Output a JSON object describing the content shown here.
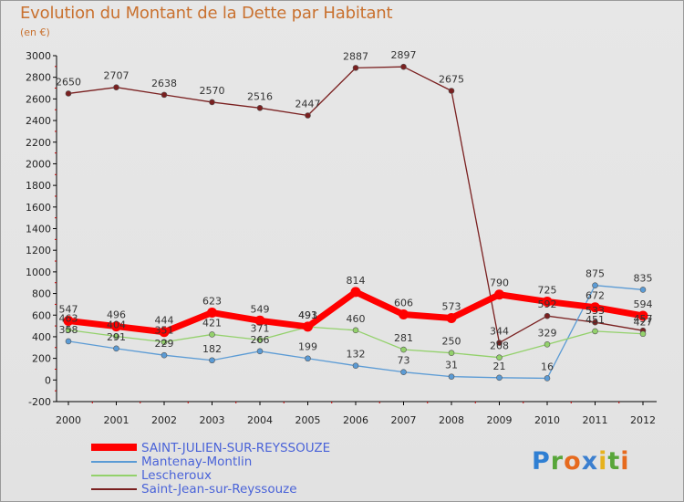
{
  "title": "Evolution du Montant de la Dette par Habitant",
  "subtitle": "(en €)",
  "logo": {
    "letters": [
      "P",
      "r",
      "o",
      "x",
      "i",
      "t",
      "i"
    ],
    "colors": [
      "#2f7fd3",
      "#58a63a",
      "#e66a1e",
      "#3b7fcf",
      "#e6b21e",
      "#58a63a",
      "#e66a1e"
    ]
  },
  "chart_data": {
    "type": "line",
    "x": [
      "2000",
      "2001",
      "2002",
      "2003",
      "2004",
      "2005",
      "2006",
      "2007",
      "2008",
      "2009",
      "2010",
      "2011",
      "2012"
    ],
    "ylim": [
      -200,
      3000
    ],
    "yticks": [
      "-200",
      "0",
      "200",
      "400",
      "600",
      "800",
      "1000",
      "1200",
      "1400",
      "1600",
      "1800",
      "2000",
      "2200",
      "2400",
      "2600",
      "2800",
      "3000"
    ],
    "grid": false,
    "legend_position": "bottom",
    "series": [
      {
        "name": "Saint-Jean-sur-Reyssouze",
        "color": "#7a2020",
        "values": [
          2650,
          2707,
          2638,
          2570,
          2516,
          2447,
          2887,
          2897,
          2675,
          344,
          592,
          533,
          457
        ],
        "labels": [
          "2650",
          "2707",
          "2638",
          "2570",
          "2516",
          "2447",
          "2887",
          "2897",
          "2675",
          "344",
          "592",
          "533",
          "457"
        ]
      },
      {
        "name": "Mantenay-Montlin",
        "color": "#5b9bd5",
        "values": [
          358,
          291,
          229,
          182,
          266,
          199,
          132,
          73,
          31,
          21,
          16,
          875,
          835
        ],
        "labels": [
          "358",
          "291",
          "229",
          "182",
          "266",
          "199",
          "132",
          "73",
          "31",
          "21",
          "16",
          "875",
          "835"
        ]
      },
      {
        "name": "Lescheroux",
        "color": "#93d16b",
        "values": [
          463,
          404,
          351,
          421,
          371,
          491,
          460,
          281,
          250,
          208,
          329,
          451,
          427
        ],
        "labels": [
          "463",
          "404",
          "351",
          "421",
          "371",
          "491",
          "460",
          "281",
          "250",
          "208",
          "329",
          "451",
          "427"
        ]
      },
      {
        "name": "SAINT-JULIEN-SUR-REYSSOUZE",
        "color": "#ff0000",
        "values": [
          547,
          496,
          444,
          623,
          549,
          493,
          814,
          606,
          573,
          790,
          725,
          672,
          594
        ],
        "labels": [
          "547",
          "496",
          "444",
          "623",
          "549",
          "493",
          "814",
          "606",
          "573",
          "790",
          "725",
          "672",
          "594"
        ]
      }
    ],
    "legend_order": [
      "SAINT-JULIEN-SUR-REYSSOUZE",
      "Mantenay-Montlin",
      "Lescheroux",
      "Saint-Jean-sur-Reyssouze"
    ]
  }
}
